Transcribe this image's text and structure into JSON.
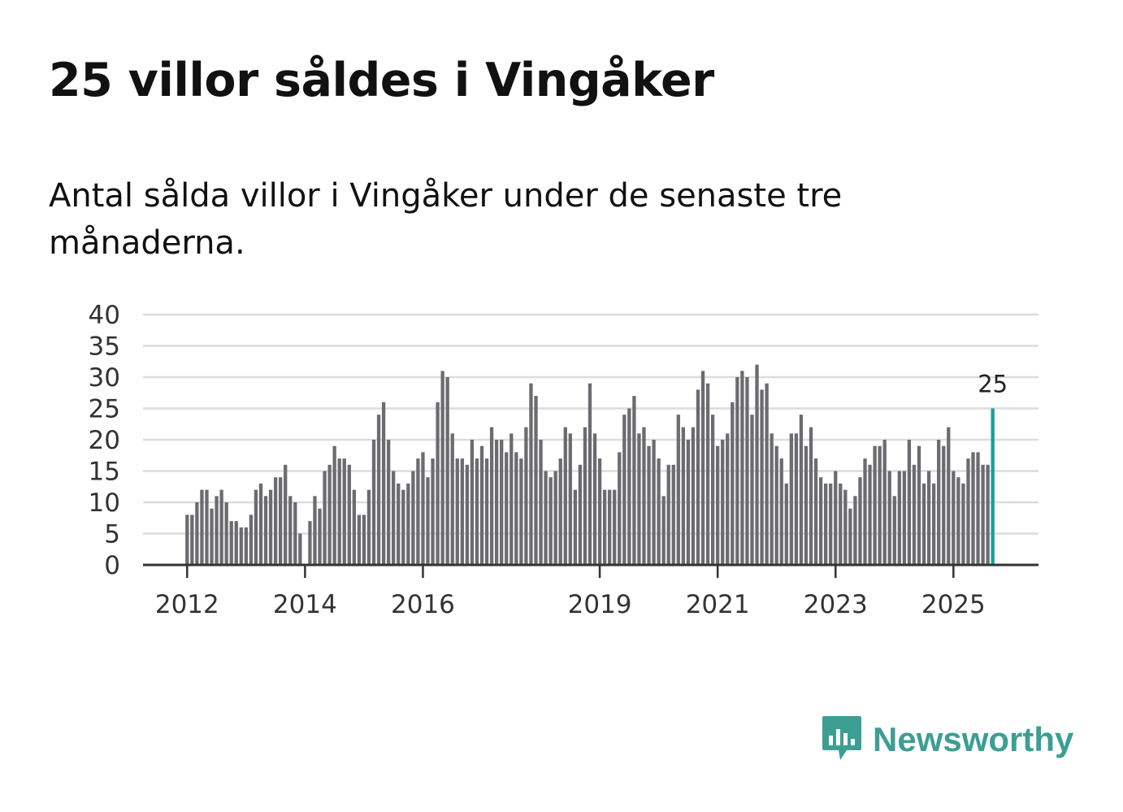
{
  "header": {
    "title": "25 villor såldes i Vingåker",
    "subtitle": "Antal sålda villor i Vingåker under de senaste tre månaderna."
  },
  "brand": {
    "name": "Newsworthy",
    "color": "#3d9e93"
  },
  "colors": {
    "bar": "#6b6b70",
    "highlight": "#199e98",
    "grid": "#dcdcdc",
    "axis": "#333333"
  },
  "chart_data": {
    "type": "bar",
    "title": "25 villor såldes i Vingåker",
    "subtitle": "Antal sålda villor i Vingåker under de senaste tre månaderna.",
    "xlabel": "",
    "ylabel": "",
    "ylim": [
      0,
      40
    ],
    "yticks": [
      0,
      5,
      10,
      15,
      20,
      25,
      30,
      35,
      40
    ],
    "grid": true,
    "start": "2012-01",
    "interval": "month",
    "xtick_labels": [
      {
        "label": "2012",
        "index": 0
      },
      {
        "label": "2014",
        "index": 24
      },
      {
        "label": "2016",
        "index": 48
      },
      {
        "label": "2019",
        "index": 84
      },
      {
        "label": "2021",
        "index": 108
      },
      {
        "label": "2023",
        "index": 132
      },
      {
        "label": "2025",
        "index": 156
      }
    ],
    "values": [
      8,
      8,
      10,
      12,
      12,
      9,
      11,
      12,
      10,
      7,
      7,
      6,
      6,
      8,
      12,
      13,
      11,
      12,
      14,
      14,
      16,
      11,
      10,
      5,
      0,
      7,
      11,
      9,
      15,
      16,
      19,
      17,
      17,
      16,
      12,
      8,
      8,
      12,
      20,
      24,
      26,
      20,
      15,
      13,
      12,
      13,
      15,
      17,
      18,
      14,
      17,
      26,
      31,
      30,
      21,
      17,
      17,
      16,
      20,
      17,
      19,
      17,
      22,
      20,
      20,
      18,
      21,
      18,
      17,
      22,
      29,
      27,
      20,
      15,
      14,
      15,
      17,
      22,
      21,
      12,
      16,
      22,
      29,
      21,
      17,
      12,
      12,
      12,
      18,
      24,
      25,
      27,
      21,
      22,
      19,
      20,
      17,
      11,
      16,
      16,
      24,
      22,
      20,
      22,
      28,
      31,
      29,
      24,
      19,
      20,
      21,
      26,
      30,
      31,
      30,
      24,
      32,
      28,
      29,
      21,
      19,
      17,
      13,
      21,
      21,
      24,
      19,
      22,
      17,
      14,
      13,
      13,
      15,
      13,
      12,
      9,
      11,
      14,
      17,
      16,
      19,
      19,
      20,
      15,
      11,
      15,
      15,
      20,
      16,
      19,
      13,
      15,
      13,
      20,
      19,
      22,
      15,
      14,
      13,
      17,
      18,
      18,
      16,
      16,
      25
    ],
    "highlight": {
      "index": 164,
      "value": 25,
      "label": "25"
    }
  }
}
